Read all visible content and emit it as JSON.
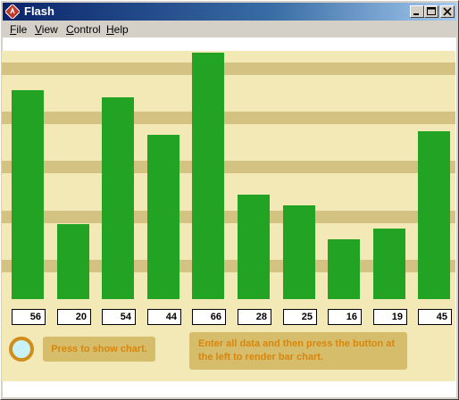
{
  "window": {
    "title": "Flash"
  },
  "menu": [
    {
      "label": "File",
      "mnemonic": "F"
    },
    {
      "label": "View",
      "mnemonic": "V"
    },
    {
      "label": "Control",
      "mnemonic": "C"
    },
    {
      "label": "Help",
      "mnemonic": "H"
    }
  ],
  "colors": {
    "bar": "#22a324",
    "background": "#f3e9b7",
    "grid": "#d3c282",
    "button": "#d6bd6b",
    "button_text": "#d9860b"
  },
  "chart_data": {
    "type": "bar",
    "values": [
      56,
      20,
      54,
      44,
      66,
      28,
      25,
      16,
      19,
      45
    ],
    "ylim": [
      0,
      66
    ],
    "grid": true
  },
  "controls": {
    "show_button_label": "Press to show chart.",
    "hint_text": "Enter all data and then press the button at the left to render bar chart."
  }
}
